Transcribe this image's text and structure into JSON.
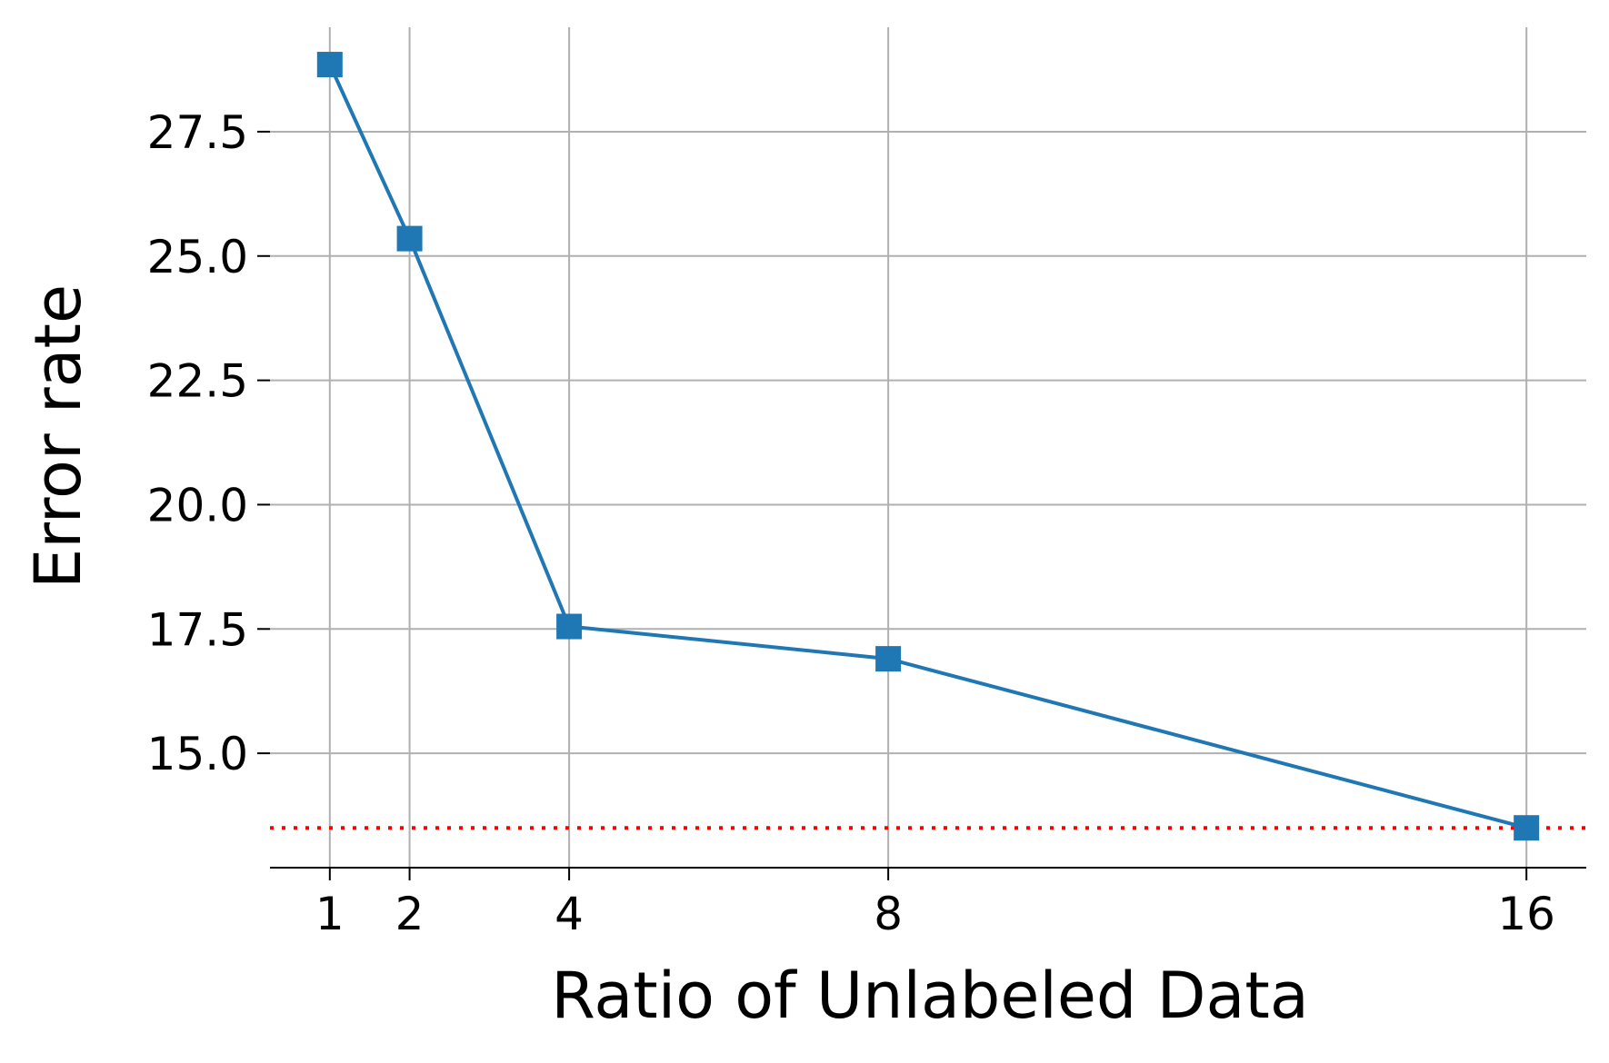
{
  "chart_data": {
    "type": "line",
    "xlabel": "Ratio of Unlabeled Data",
    "ylabel": "Error rate",
    "x": [
      1,
      2,
      4,
      8,
      16
    ],
    "x_tick_labels": [
      "1",
      "2",
      "4",
      "8",
      "16"
    ],
    "xlim": [
      0.25,
      16.75
    ],
    "ylim": [
      12.7,
      29.6
    ],
    "y_ticks": [
      15.0,
      17.5,
      20.0,
      22.5,
      25.0,
      27.5
    ],
    "y_tick_labels": [
      "15.0",
      "17.5",
      "20.0",
      "22.5",
      "25.0",
      "27.5"
    ],
    "grid": true,
    "series": [
      {
        "values": [
          28.85,
          25.35,
          17.55,
          16.9,
          13.5
        ],
        "color": "#1f77b4",
        "marker": "square"
      }
    ],
    "reference_line": {
      "y": 13.5,
      "color": "#ff0000",
      "style": "dotted"
    }
  }
}
